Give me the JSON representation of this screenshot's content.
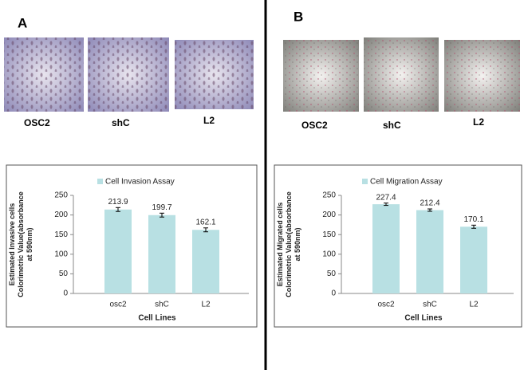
{
  "panels": [
    {
      "label": "A",
      "images": [
        "OSC2",
        "shC",
        "L2"
      ]
    },
    {
      "label": "B",
      "images": [
        "OSC2",
        "shC",
        "L2"
      ]
    }
  ],
  "chart_data": [
    {
      "type": "bar",
      "legend": "Cell Invasion Assay",
      "ylabel": "Estimated Invasive cells Colorimetric Value(absorbance at 590nm)",
      "xlabel": "Cell Lines",
      "categories": [
        "osc2",
        "shC",
        "L2"
      ],
      "values": [
        213.9,
        199.7,
        162.1
      ],
      "errors": [
        5,
        5,
        5
      ],
      "color": "#b8e0e3",
      "ylim": [
        0,
        250
      ],
      "yticks": [
        0,
        50,
        100,
        150,
        200,
        250
      ]
    },
    {
      "type": "bar",
      "legend": "Cell Migration Assay",
      "ylabel": "Estimated Migrated cells Colorimetric Value(absorbance at 590nm)",
      "xlabel": "Cell Lines",
      "categories": [
        "osc2",
        "shC",
        "L2"
      ],
      "values": [
        227.4,
        212.4,
        170.1
      ],
      "errors": [
        3,
        3,
        4
      ],
      "color": "#b8e0e3",
      "ylim": [
        0,
        250
      ],
      "yticks": [
        0,
        50,
        100,
        150,
        200,
        250
      ]
    }
  ]
}
